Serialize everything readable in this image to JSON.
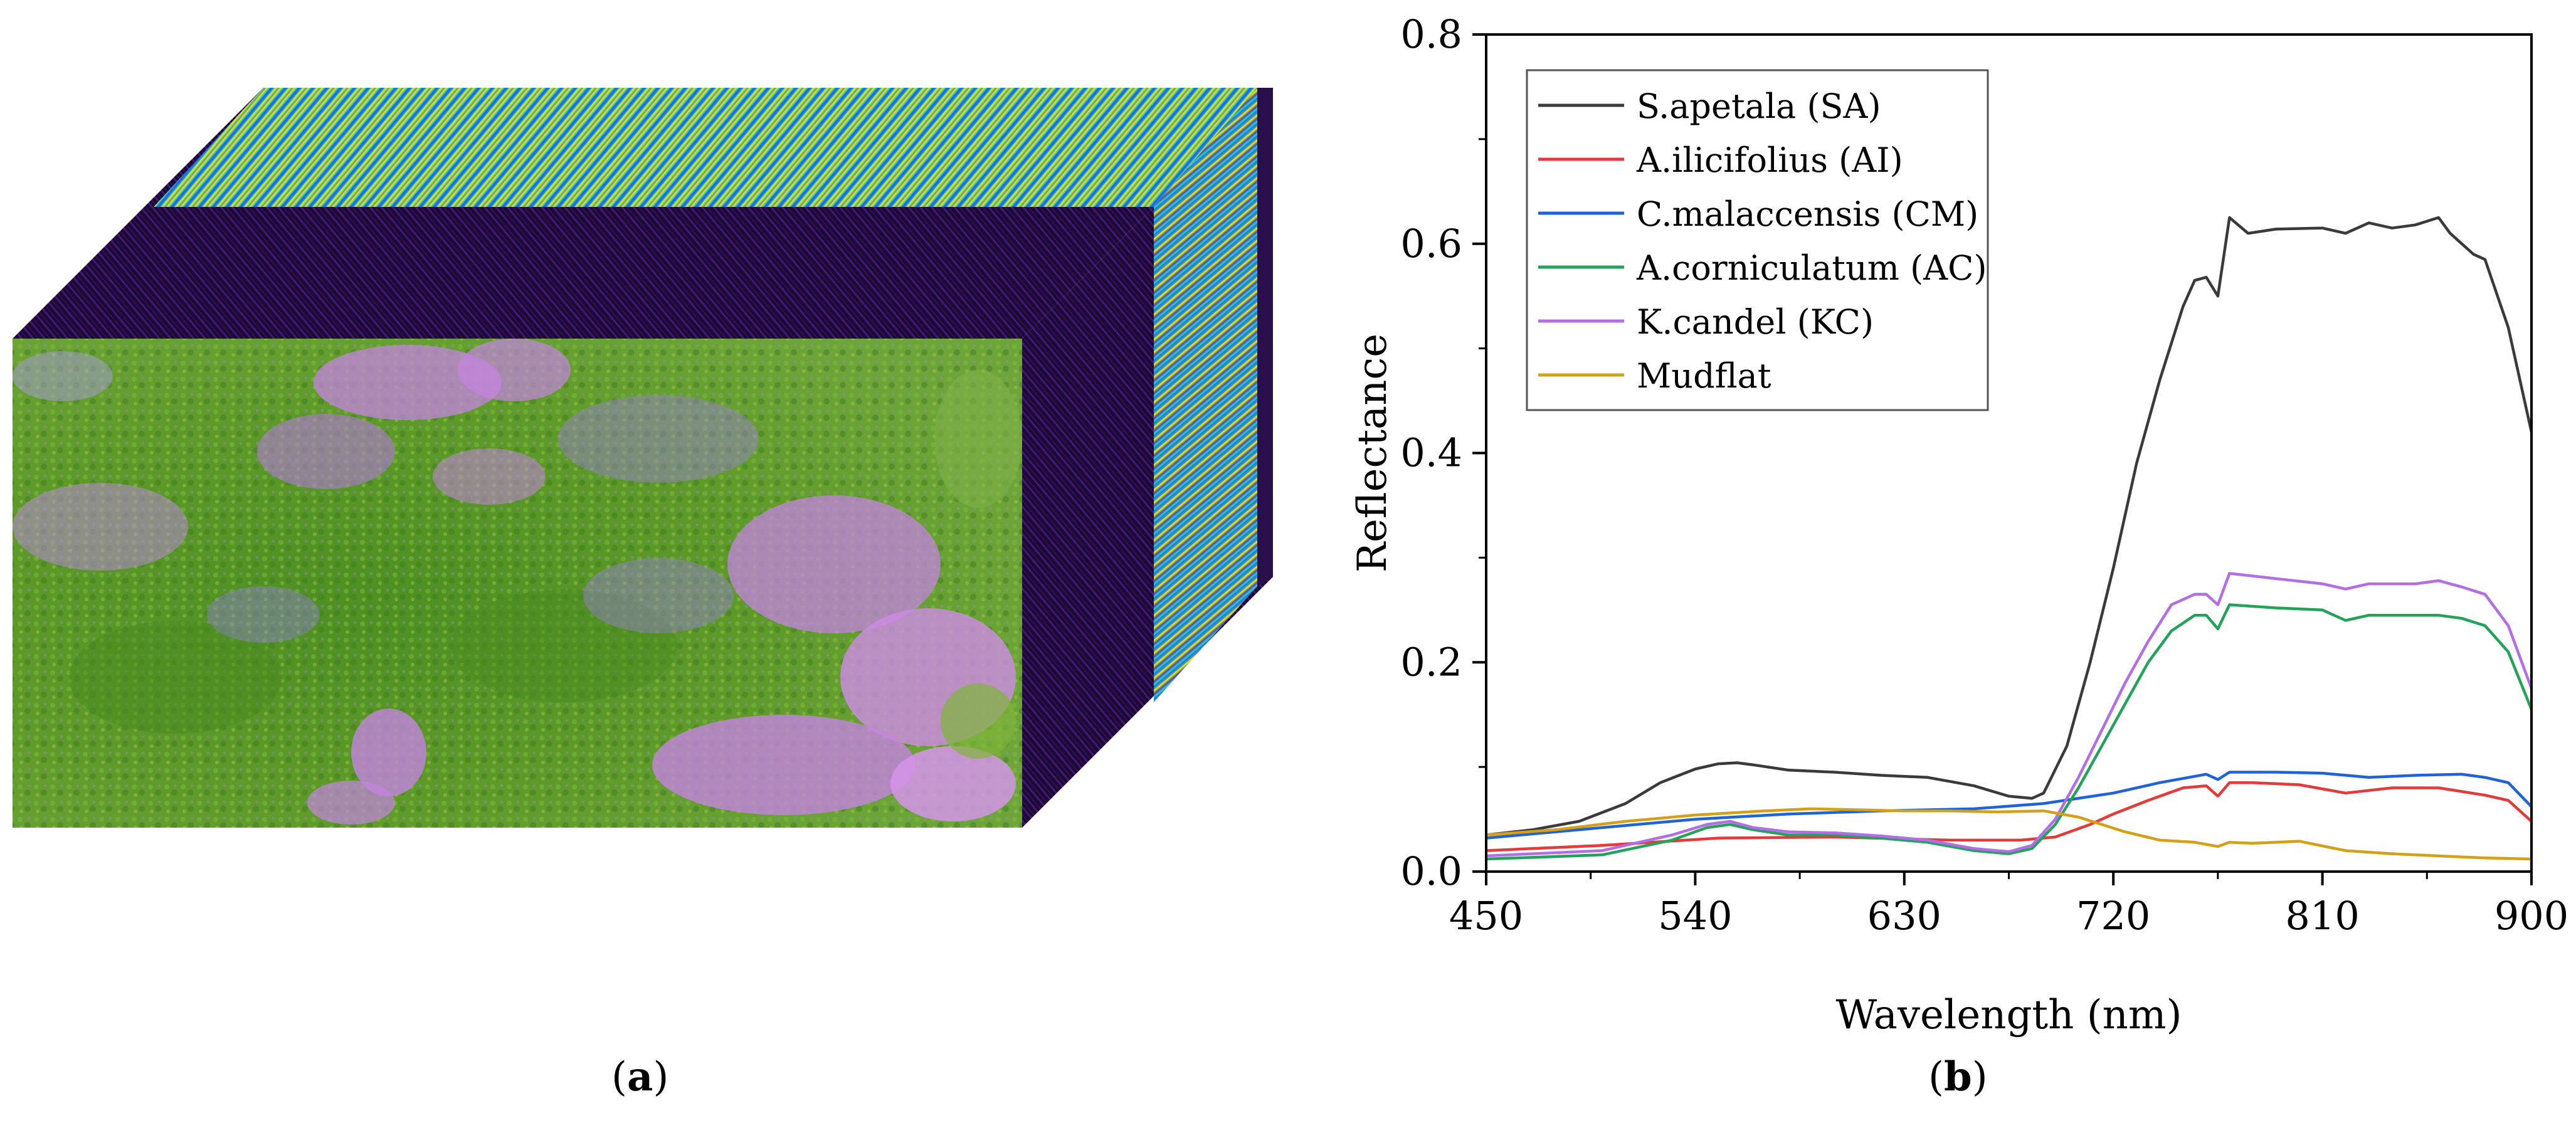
{
  "panels": {
    "a": {
      "caption_open": "(",
      "caption_letter": "a",
      "caption_close": ")"
    },
    "b": {
      "caption_open": "(",
      "caption_letter": "b",
      "caption_close": ")"
    }
  },
  "colors": {
    "cube_dark": "#1c0a33",
    "cube_purple": "#4b1d8c",
    "cube_blue": "#1f5be0",
    "cube_cyan": "#29d3c9",
    "cube_yellow": "#f2e600",
    "cube_red": "#d9201c",
    "veg_green": "#5f9b2a",
    "veg_pink": "#c483e0"
  },
  "chart_data": {
    "type": "line",
    "title": "",
    "xlabel": "Wavelength (nm)",
    "ylabel": "Reflectance",
    "xlim": [
      450,
      900
    ],
    "ylim": [
      0.0,
      0.8
    ],
    "x_ticks": [
      450,
      540,
      630,
      720,
      810,
      900
    ],
    "y_ticks": [
      0.0,
      0.2,
      0.4,
      0.6,
      0.8
    ],
    "x_tick_labels": [
      "450",
      "540",
      "630",
      "720",
      "810",
      "900"
    ],
    "y_tick_labels": [
      "0.0",
      "0.2",
      "0.4",
      "0.6",
      "0.8"
    ],
    "grid": false,
    "legend_position": "top-left",
    "series": [
      {
        "name": "S.apetala (SA)",
        "color": "#3a3a3a",
        "x": [
          450,
          470,
          490,
          510,
          525,
          540,
          550,
          558,
          565,
          580,
          600,
          620,
          640,
          660,
          675,
          685,
          690,
          700,
          710,
          720,
          730,
          740,
          750,
          755,
          760,
          765,
          770,
          778,
          790,
          810,
          820,
          830,
          840,
          850,
          860,
          865,
          870,
          875,
          880,
          890,
          900
        ],
        "y": [
          0.035,
          0.04,
          0.048,
          0.065,
          0.085,
          0.098,
          0.103,
          0.104,
          0.102,
          0.097,
          0.095,
          0.092,
          0.09,
          0.082,
          0.072,
          0.07,
          0.075,
          0.12,
          0.2,
          0.29,
          0.39,
          0.47,
          0.54,
          0.565,
          0.568,
          0.55,
          0.625,
          0.61,
          0.614,
          0.615,
          0.61,
          0.62,
          0.615,
          0.618,
          0.625,
          0.61,
          0.6,
          0.59,
          0.585,
          0.52,
          0.42
        ]
      },
      {
        "name": "A.ilicifolius (AI)",
        "color": "#e63a3a",
        "x": [
          450,
          500,
          550,
          600,
          650,
          680,
          695,
          710,
          720,
          735,
          750,
          760,
          765,
          770,
          780,
          800,
          820,
          840,
          860,
          880,
          890,
          900
        ],
        "y": [
          0.02,
          0.025,
          0.032,
          0.033,
          0.03,
          0.03,
          0.033,
          0.045,
          0.055,
          0.068,
          0.08,
          0.082,
          0.072,
          0.085,
          0.085,
          0.083,
          0.075,
          0.08,
          0.08,
          0.073,
          0.068,
          0.048
        ]
      },
      {
        "name": "C.malaccensis (CM)",
        "color": "#1f63d8",
        "x": [
          450,
          500,
          540,
          580,
          620,
          660,
          690,
          720,
          740,
          760,
          765,
          770,
          790,
          810,
          830,
          850,
          870,
          880,
          890,
          900
        ],
        "y": [
          0.032,
          0.042,
          0.05,
          0.055,
          0.058,
          0.06,
          0.065,
          0.075,
          0.085,
          0.093,
          0.088,
          0.095,
          0.095,
          0.094,
          0.09,
          0.092,
          0.093,
          0.09,
          0.085,
          0.062
        ]
      },
      {
        "name": "A.corniculatum (AC)",
        "color": "#22a35a",
        "x": [
          450,
          500,
          530,
          545,
          555,
          565,
          580,
          600,
          620,
          640,
          660,
          675,
          685,
          695,
          705,
          715,
          725,
          735,
          745,
          755,
          760,
          765,
          770,
          790,
          810,
          820,
          830,
          850,
          860,
          870,
          880,
          890,
          900
        ],
        "y": [
          0.012,
          0.016,
          0.03,
          0.042,
          0.045,
          0.04,
          0.035,
          0.035,
          0.032,
          0.028,
          0.02,
          0.017,
          0.022,
          0.045,
          0.08,
          0.12,
          0.16,
          0.2,
          0.23,
          0.245,
          0.245,
          0.232,
          0.255,
          0.252,
          0.25,
          0.24,
          0.245,
          0.245,
          0.245,
          0.242,
          0.235,
          0.21,
          0.155
        ]
      },
      {
        "name": "K.candel (KC)",
        "color": "#b36ee6",
        "x": [
          450,
          500,
          530,
          545,
          555,
          565,
          580,
          600,
          620,
          640,
          660,
          675,
          685,
          695,
          705,
          715,
          725,
          735,
          745,
          755,
          760,
          765,
          770,
          790,
          810,
          820,
          830,
          850,
          860,
          870,
          880,
          890,
          900
        ],
        "y": [
          0.015,
          0.02,
          0.035,
          0.045,
          0.048,
          0.042,
          0.038,
          0.037,
          0.034,
          0.03,
          0.022,
          0.019,
          0.025,
          0.05,
          0.09,
          0.135,
          0.18,
          0.22,
          0.255,
          0.265,
          0.265,
          0.255,
          0.285,
          0.28,
          0.275,
          0.27,
          0.275,
          0.275,
          0.278,
          0.272,
          0.265,
          0.235,
          0.175
        ]
      },
      {
        "name": "Mudflat",
        "color": "#d4a017",
        "x": [
          450,
          480,
          510,
          540,
          570,
          590,
          610,
          630,
          650,
          670,
          690,
          705,
          715,
          725,
          740,
          755,
          765,
          770,
          780,
          800,
          820,
          840,
          860,
          880,
          900
        ],
        "y": [
          0.035,
          0.04,
          0.048,
          0.054,
          0.058,
          0.06,
          0.059,
          0.058,
          0.058,
          0.057,
          0.058,
          0.052,
          0.045,
          0.038,
          0.03,
          0.028,
          0.024,
          0.028,
          0.027,
          0.029,
          0.02,
          0.017,
          0.015,
          0.013,
          0.012
        ]
      }
    ]
  }
}
